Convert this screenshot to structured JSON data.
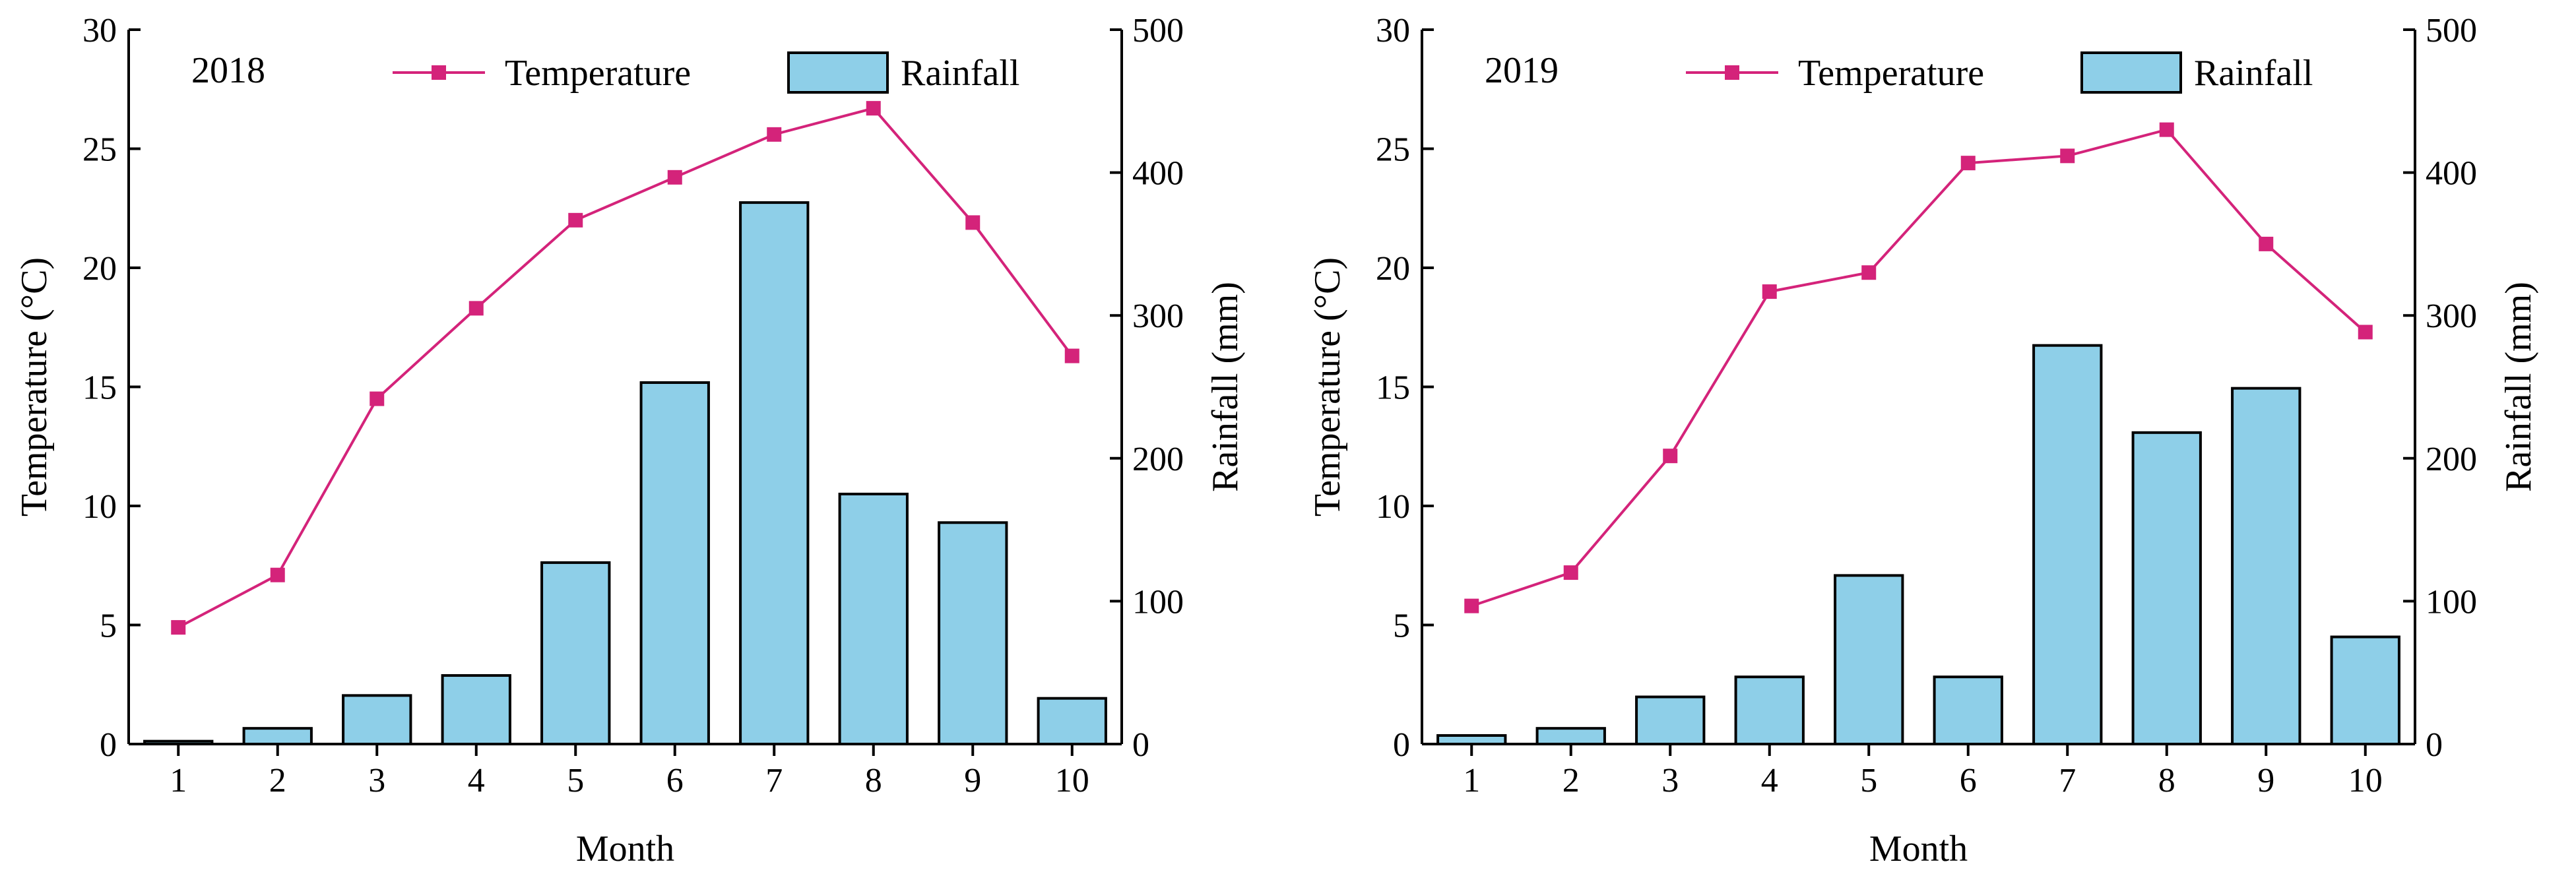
{
  "colors": {
    "temperature": "#d4237a",
    "rainfall_fill": "#8ecfe8",
    "axis": "#000000"
  },
  "chart_data": [
    {
      "type": "bar+line",
      "title": "2018",
      "xlabel": "Month",
      "ylabel_left": "Temperature (°C)",
      "ylabel_right": "Rainfall (mm)",
      "ylim_left": [
        0,
        30
      ],
      "yticks_left": [
        0,
        5,
        10,
        15,
        20,
        25,
        30
      ],
      "ylim_right": [
        0,
        500
      ],
      "yticks_right": [
        0,
        100,
        200,
        300,
        400,
        500
      ],
      "grid": false,
      "legend_position": "top",
      "categories": [
        "1",
        "2",
        "3",
        "4",
        "5",
        "6",
        "7",
        "8",
        "9",
        "10"
      ],
      "series": [
        {
          "name": "Temperature",
          "type": "line",
          "axis": "left",
          "values": [
            4.9,
            7.1,
            14.5,
            18.3,
            22.0,
            23.8,
            25.6,
            26.7,
            21.9,
            16.3
          ]
        },
        {
          "name": "Rainfall",
          "type": "bar",
          "axis": "right",
          "values": [
            2,
            11,
            34,
            48,
            127,
            253,
            379,
            175,
            155,
            32
          ]
        }
      ]
    },
    {
      "type": "bar+line",
      "title": "2019",
      "xlabel": "Month",
      "ylabel_left": "Temperature (°C)",
      "ylabel_right": "Rainfall (mm)",
      "ylim_left": [
        0,
        30
      ],
      "yticks_left": [
        0,
        5,
        10,
        15,
        20,
        25,
        30
      ],
      "ylim_right": [
        0,
        500
      ],
      "yticks_right": [
        0,
        100,
        200,
        300,
        400,
        500
      ],
      "grid": false,
      "legend_position": "top",
      "categories": [
        "1",
        "2",
        "3",
        "4",
        "5",
        "6",
        "7",
        "8",
        "9",
        "10"
      ],
      "series": [
        {
          "name": "Temperature",
          "type": "line",
          "axis": "left",
          "values": [
            5.8,
            7.2,
            12.1,
            19.0,
            19.8,
            24.4,
            24.7,
            25.8,
            21.0,
            17.3
          ]
        },
        {
          "name": "Rainfall",
          "type": "bar",
          "axis": "right",
          "values": [
            6,
            11,
            33,
            47,
            118,
            47,
            279,
            218,
            249,
            75
          ]
        }
      ]
    }
  ]
}
